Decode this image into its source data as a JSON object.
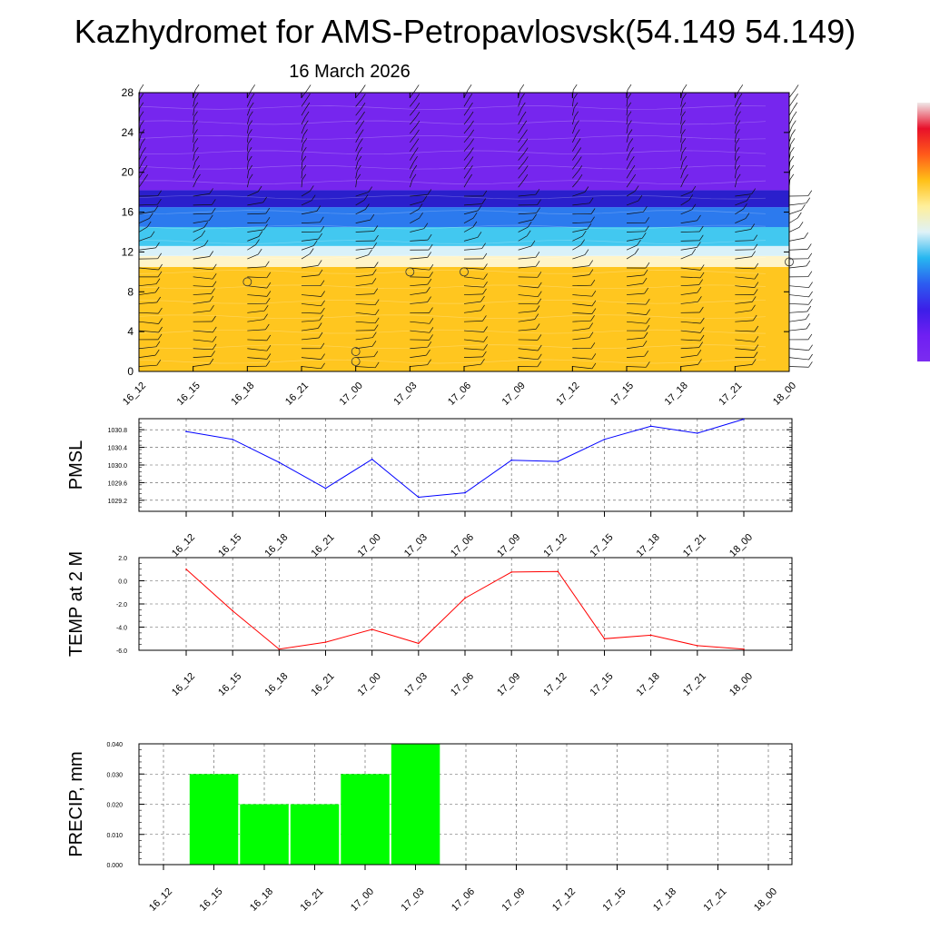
{
  "header": {
    "title": "Kazhydromet for AMS-Petropavlosvsk(54.149 54.149)",
    "date": "16 March 2026"
  },
  "colors": {
    "pmsl_line": "#0000ff",
    "temp_line": "#ff0000",
    "precip_bar": "#00ff00",
    "colorbar": [
      "#7b2cf0",
      "#6f1ff2",
      "#3c1ee8",
      "#2c5cf0",
      "#27b7f0",
      "#dff2f8",
      "#ffef9a",
      "#ffc017",
      "#ff5a1a",
      "#e8102a",
      "#f0e8e8"
    ]
  },
  "chart_data": [
    {
      "type": "heatmap",
      "name": "upper-air-section",
      "title": "",
      "categories": [
        "16_12",
        "16_15",
        "16_18",
        "16_21",
        "17_00",
        "17_03",
        "17_06",
        "17_09",
        "17_12",
        "17_15",
        "17_18",
        "17_21",
        "18_00"
      ],
      "xlabel": "",
      "ylabel": "",
      "ylim": [
        0,
        28
      ],
      "yticks": [
        0,
        4,
        8,
        12,
        16,
        20,
        24,
        28
      ],
      "bands": [
        {
          "from": 0,
          "to": 10.5,
          "color": "#ffc61f"
        },
        {
          "from": 10.5,
          "to": 11.6,
          "color": "#fff4c8"
        },
        {
          "from": 11.6,
          "to": 12.6,
          "color": "#d9f1f9"
        },
        {
          "from": 12.6,
          "to": 14.5,
          "color": "#42c8f0"
        },
        {
          "from": 14.5,
          "to": 16.5,
          "color": "#2c7aee"
        },
        {
          "from": 16.5,
          "to": 18.2,
          "color": "#2a1fcc"
        },
        {
          "from": 18.2,
          "to": 28,
          "color": "#7626ee"
        }
      ],
      "calm_markers": [
        {
          "x": "16_18",
          "y": 9
        },
        {
          "x": "17_00",
          "y": 2
        },
        {
          "x": "17_00",
          "y": 1
        },
        {
          "x": "17_03",
          "y": 10
        },
        {
          "x": "17_06",
          "y": 10
        },
        {
          "x": "18_00",
          "y": 11
        }
      ]
    },
    {
      "type": "line",
      "name": "pmsl",
      "ylabel": "PMSL",
      "xlabel": "",
      "categories": [
        "16_12",
        "16_15",
        "16_18",
        "16_21",
        "17_00",
        "17_03",
        "17_06",
        "17_09",
        "17_12",
        "17_15",
        "17_18",
        "17_21",
        "18_00"
      ],
      "series": [
        {
          "name": "PMSL",
          "values": [
            1030.76,
            1030.58,
            1030.06,
            1029.47,
            1030.13,
            1029.27,
            1029.37,
            1030.11,
            1030.08,
            1030.58,
            1030.88,
            1030.72,
            1031.04
          ]
        }
      ],
      "ylim": [
        1028.95,
        1031.05
      ],
      "yticks": [
        1029.2,
        1029.6,
        1030.0,
        1030.4,
        1030.8
      ],
      "ytick_labels": [
        "1029.2",
        "1029.6",
        "1030.0",
        "1030.4",
        "1030.8"
      ],
      "grid": true
    },
    {
      "type": "line",
      "name": "temp",
      "ylabel": "TEMP at 2 M",
      "xlabel": "",
      "categories": [
        "16_12",
        "16_15",
        "16_18",
        "16_21",
        "17_00",
        "17_03",
        "17_06",
        "17_09",
        "17_12",
        "17_15",
        "17_18",
        "17_21",
        "18_00"
      ],
      "series": [
        {
          "name": "TEMP at 2 M",
          "values": [
            1.0,
            -2.6,
            -5.9,
            -5.3,
            -4.2,
            -5.4,
            -1.5,
            0.75,
            0.8,
            -5.0,
            -4.7,
            -5.6,
            -5.9
          ]
        }
      ],
      "ylim": [
        -6.0,
        2.0
      ],
      "yticks": [
        -6.0,
        -4.0,
        -2.0,
        0.0,
        2.0
      ],
      "ytick_labels": [
        "-6.0",
        "-4.0",
        "-2.0",
        "0.0",
        "2.0"
      ],
      "grid": true
    },
    {
      "type": "bar",
      "name": "precip",
      "ylabel": "PRECIP, mm",
      "xlabel": "",
      "categories": [
        "16_12",
        "16_15",
        "16_18",
        "16_21",
        "17_00",
        "17_03",
        "17_06",
        "17_09",
        "17_12",
        "17_15",
        "17_18",
        "17_21",
        "18_00"
      ],
      "values": [
        0,
        0.03,
        0.02,
        0.02,
        0.03,
        0.04,
        0,
        0,
        0,
        0,
        0,
        0,
        0
      ],
      "ylim": [
        0,
        0.04
      ],
      "yticks": [
        0,
        0.01,
        0.02,
        0.03,
        0.04
      ],
      "ytick_labels": [
        "0.000",
        "0.010",
        "0.020",
        "0.030",
        "0.040"
      ],
      "grid": true
    }
  ]
}
